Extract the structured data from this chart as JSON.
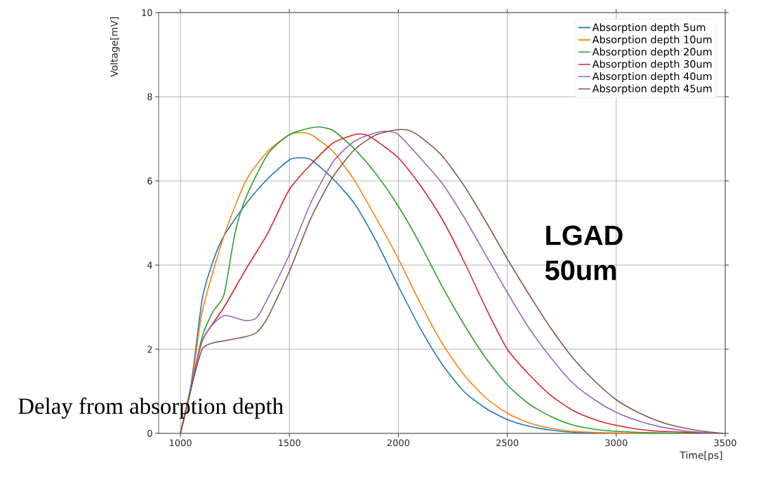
{
  "chart_data": {
    "type": "line",
    "xlabel": "Time[ps]",
    "ylabel": "Voltage[mV]",
    "xlim": [
      900,
      3500
    ],
    "ylim": [
      0,
      10
    ],
    "xticks": [
      1000,
      1500,
      2000,
      2500,
      3000,
      3500
    ],
    "yticks": [
      0,
      2,
      4,
      6,
      8,
      10
    ],
    "grid": true,
    "legend": "top right",
    "annotations": [
      "LGAD 50um",
      "Delay from absorption depth"
    ],
    "series": [
      {
        "name": "Absorption depth 5um",
        "color": "#1f77b4",
        "x": [
          1000,
          1050,
          1100,
          1150,
          1200,
          1300,
          1400,
          1500,
          1550,
          1600,
          1700,
          1800,
          1900,
          2000,
          2100,
          2200,
          2300,
          2400,
          2500,
          2600,
          2700,
          2800,
          3000,
          3500
        ],
        "values": [
          0,
          1.2,
          3.2,
          4.1,
          4.7,
          5.45,
          6.05,
          6.5,
          6.55,
          6.5,
          6.05,
          5.45,
          4.55,
          3.5,
          2.5,
          1.65,
          1.0,
          0.6,
          0.33,
          0.17,
          0.08,
          0.03,
          0,
          0
        ]
      },
      {
        "name": "Absorption depth 10um",
        "color": "#ff7f0e",
        "x": [
          1000,
          1050,
          1100,
          1200,
          1300,
          1400,
          1500,
          1550,
          1600,
          1700,
          1800,
          1900,
          2000,
          2100,
          2200,
          2300,
          2400,
          2500,
          2600,
          2700,
          2800,
          3000,
          3500
        ],
        "values": [
          0,
          1.1,
          2.9,
          4.7,
          6.0,
          6.7,
          7.1,
          7.15,
          7.1,
          6.7,
          6.0,
          5.1,
          4.15,
          3.1,
          2.15,
          1.4,
          0.85,
          0.48,
          0.25,
          0.12,
          0.05,
          0.01,
          0
        ]
      },
      {
        "name": "Absorption depth 20um",
        "color": "#2ca02c",
        "x": [
          1000,
          1050,
          1100,
          1150,
          1200,
          1250,
          1300,
          1400,
          1500,
          1620,
          1700,
          1800,
          1900,
          2000,
          2100,
          2200,
          2300,
          2400,
          2500,
          2600,
          2700,
          2800,
          2900,
          3000,
          3200,
          3500
        ],
        "values": [
          0,
          1.1,
          2.3,
          2.9,
          3.3,
          4.75,
          5.6,
          6.63,
          7.1,
          7.28,
          7.2,
          6.75,
          6.15,
          5.4,
          4.5,
          3.5,
          2.6,
          1.8,
          1.15,
          0.7,
          0.4,
          0.2,
          0.1,
          0.05,
          0.01,
          0
        ]
      },
      {
        "name": "Absorption depth 30um",
        "color": "#d62728",
        "x": [
          1000,
          1050,
          1100,
          1200,
          1300,
          1400,
          1500,
          1600,
          1700,
          1800,
          1850,
          1900,
          2000,
          2100,
          2200,
          2300,
          2400,
          2500,
          2600,
          2700,
          2800,
          2900,
          3000,
          3100,
          3200,
          3500
        ],
        "values": [
          0,
          1.1,
          2.2,
          3.0,
          3.9,
          4.75,
          5.8,
          6.4,
          6.9,
          7.1,
          7.1,
          6.95,
          6.55,
          5.9,
          5.1,
          4.1,
          3.0,
          2.0,
          1.4,
          0.9,
          0.55,
          0.33,
          0.19,
          0.1,
          0.05,
          0
        ]
      },
      {
        "name": "Absorption depth 40um",
        "color": "#9467bd",
        "x": [
          1000,
          1050,
          1100,
          1150,
          1200,
          1250,
          1300,
          1350,
          1400,
          1500,
          1600,
          1700,
          1800,
          1900,
          1950,
          2000,
          2100,
          2200,
          2300,
          2400,
          2500,
          2600,
          2700,
          2800,
          2900,
          3000,
          3100,
          3200,
          3300,
          3400,
          3500
        ],
        "values": [
          0,
          1.1,
          2.2,
          2.6,
          2.8,
          2.75,
          2.68,
          2.75,
          3.2,
          4.25,
          5.5,
          6.45,
          6.95,
          7.15,
          7.18,
          7.1,
          6.55,
          5.95,
          5.15,
          4.25,
          3.35,
          2.5,
          1.8,
          1.2,
          0.8,
          0.5,
          0.3,
          0.16,
          0.07,
          0.02,
          0
        ]
      },
      {
        "name": "Absorption depth 45um",
        "color": "#8c564b",
        "x": [
          1000,
          1050,
          1100,
          1150,
          1200,
          1300,
          1350,
          1400,
          1500,
          1600,
          1700,
          1800,
          1900,
          2000,
          2050,
          2100,
          2200,
          2300,
          2400,
          2500,
          2600,
          2700,
          2800,
          2900,
          3000,
          3100,
          3200,
          3300,
          3400,
          3500
        ],
        "values": [
          0,
          1.1,
          2.0,
          2.15,
          2.2,
          2.3,
          2.4,
          2.75,
          3.85,
          5.13,
          6.1,
          6.75,
          7.1,
          7.22,
          7.2,
          7.05,
          6.6,
          5.9,
          5.05,
          4.15,
          3.3,
          2.5,
          1.8,
          1.25,
          0.8,
          0.5,
          0.28,
          0.14,
          0.05,
          0
        ]
      }
    ]
  }
}
